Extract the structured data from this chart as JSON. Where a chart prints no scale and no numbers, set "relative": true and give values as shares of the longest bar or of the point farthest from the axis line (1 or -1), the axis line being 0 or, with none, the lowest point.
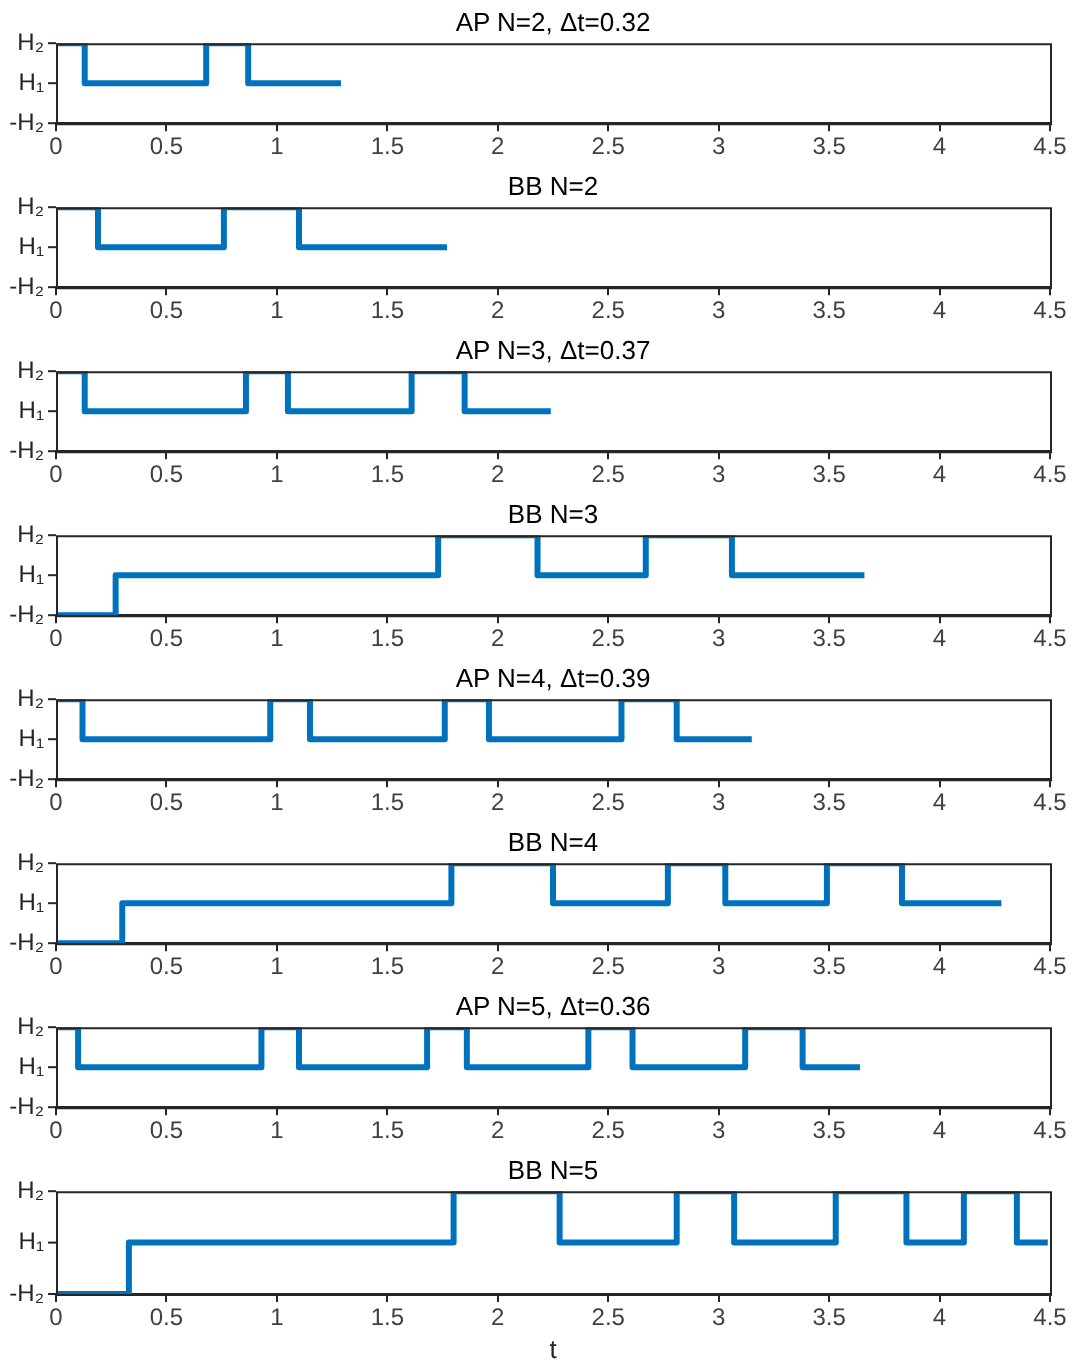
{
  "chart_data": [
    {
      "type": "step",
      "relative": true,
      "title": "AP N=2, Δt=0.32",
      "color": "#0072bd",
      "grid": false,
      "x": [
        0,
        0.13,
        0.68,
        0.87,
        1.29
      ],
      "values": [
        1,
        0.5,
        1,
        0.5,
        0.5
      ],
      "xlim": [
        0,
        4.5
      ],
      "xticks": [
        0,
        0.5,
        1,
        1.5,
        2,
        2.5,
        3,
        3.5,
        4,
        4.5
      ],
      "annotations": [
        "-H₂",
        "H₁",
        "H₂"
      ]
    },
    {
      "type": "step",
      "relative": true,
      "title": "BB N=2",
      "color": "#0072bd",
      "grid": false,
      "x": [
        0,
        0.19,
        0.76,
        1.1,
        1.77
      ],
      "values": [
        1,
        0.5,
        1,
        0.5,
        0.5
      ],
      "xlim": [
        0,
        4.5
      ],
      "xticks": [
        0,
        0.5,
        1,
        1.5,
        2,
        2.5,
        3,
        3.5,
        4,
        4.5
      ],
      "annotations": [
        "-H₂",
        "H₁",
        "H₂"
      ]
    },
    {
      "type": "step",
      "relative": true,
      "title": "AP N=3, Δt=0.37",
      "color": "#0072bd",
      "grid": false,
      "x": [
        0,
        0.13,
        0.86,
        1.05,
        1.61,
        1.85,
        2.24
      ],
      "values": [
        1,
        0.5,
        1,
        0.5,
        1,
        0.5,
        0.5
      ],
      "xlim": [
        0,
        4.5
      ],
      "xticks": [
        0,
        0.5,
        1,
        1.5,
        2,
        2.5,
        3,
        3.5,
        4,
        4.5
      ],
      "annotations": [
        "-H₂",
        "H₁",
        "H₂"
      ]
    },
    {
      "type": "step",
      "relative": true,
      "title": "BB N=3",
      "color": "#0072bd",
      "grid": false,
      "x": [
        0,
        0.27,
        1.73,
        2.18,
        2.67,
        3.06,
        3.66
      ],
      "values": [
        0,
        0.5,
        1,
        0.5,
        1,
        0.5,
        0.5
      ],
      "xlim": [
        0,
        4.5
      ],
      "xticks": [
        0,
        0.5,
        1,
        1.5,
        2,
        2.5,
        3,
        3.5,
        4,
        4.5
      ],
      "annotations": [
        "-H₂",
        "H₁",
        "H₂"
      ]
    },
    {
      "type": "step",
      "relative": true,
      "title": "AP N=4, Δt=0.39",
      "color": "#0072bd",
      "grid": false,
      "x": [
        0,
        0.12,
        0.97,
        1.15,
        1.76,
        1.96,
        2.56,
        2.81,
        3.15
      ],
      "values": [
        1,
        0.5,
        1,
        0.5,
        1,
        0.5,
        1,
        0.5,
        0.5
      ],
      "xlim": [
        0,
        4.5
      ],
      "xticks": [
        0,
        0.5,
        1,
        1.5,
        2,
        2.5,
        3,
        3.5,
        4,
        4.5
      ],
      "annotations": [
        "-H₂",
        "H₁",
        "H₂"
      ]
    },
    {
      "type": "step",
      "relative": true,
      "title": "BB N=4",
      "color": "#0072bd",
      "grid": false,
      "x": [
        0,
        0.3,
        1.79,
        2.25,
        2.77,
        3.03,
        3.49,
        3.83,
        4.28
      ],
      "values": [
        0,
        0.5,
        1,
        0.5,
        1,
        0.5,
        1,
        0.5,
        0.5
      ],
      "xlim": [
        0,
        4.5
      ],
      "xticks": [
        0,
        0.5,
        1,
        1.5,
        2,
        2.5,
        3,
        3.5,
        4,
        4.5
      ],
      "annotations": [
        "-H₂",
        "H₁",
        "H₂"
      ]
    },
    {
      "type": "step",
      "relative": true,
      "title": "AP N=5, Δt=0.36",
      "color": "#0072bd",
      "grid": false,
      "x": [
        0,
        0.1,
        0.93,
        1.1,
        1.68,
        1.86,
        2.41,
        2.61,
        3.12,
        3.38,
        3.64
      ],
      "values": [
        1,
        0.5,
        1,
        0.5,
        1,
        0.5,
        1,
        0.5,
        1,
        0.5,
        0.5
      ],
      "xlim": [
        0,
        4.5
      ],
      "xticks": [
        0,
        0.5,
        1,
        1.5,
        2,
        2.5,
        3,
        3.5,
        4,
        4.5
      ],
      "annotations": [
        "-H₂",
        "H₁",
        "H₂"
      ]
    },
    {
      "type": "step",
      "relative": true,
      "title": "BB N=5",
      "xlabel": "t",
      "color": "#0072bd",
      "grid": false,
      "x": [
        0,
        0.33,
        1.8,
        2.28,
        2.81,
        3.07,
        3.53,
        3.85,
        4.11,
        4.35,
        4.49
      ],
      "values": [
        0,
        0.5,
        1,
        0.5,
        1,
        0.5,
        1,
        0.5,
        1,
        0.5,
        0.5
      ],
      "xlim": [
        0,
        4.5
      ],
      "xticks": [
        0,
        0.5,
        1,
        1.5,
        2,
        2.5,
        3,
        3.5,
        4,
        4.5
      ],
      "annotations": [
        "-H₂",
        "H₁",
        "H₂"
      ]
    }
  ]
}
